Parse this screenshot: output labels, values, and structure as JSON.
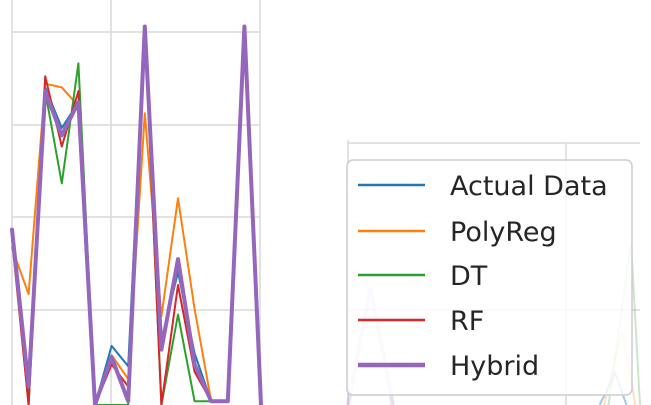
{
  "chart_data": {
    "type": "line",
    "grid": true,
    "legend_position": "lower-right",
    "x": [
      0,
      1,
      2,
      3,
      4,
      5,
      6,
      7,
      8,
      9,
      10,
      11,
      12,
      13,
      14,
      15
    ],
    "series": [
      {
        "name": "Actual Data",
        "color": "#1f77b4",
        "width": 2,
        "values": [
          0.95,
          0.05,
          1.72,
          1.5,
          1.64,
          0.0,
          0.32,
          0.21,
          2.05,
          0.35,
          0.72,
          0.28,
          0.02,
          0.02,
          2.05,
          0.0
        ]
      },
      {
        "name": "PolyReg",
        "color": "#ff7f0e",
        "width": 2,
        "values": [
          0.85,
          0.6,
          1.74,
          1.72,
          1.62,
          0.0,
          0.27,
          0.14,
          1.58,
          0.48,
          1.12,
          0.52,
          0.02,
          0.02,
          2.05,
          0.0
        ]
      },
      {
        "name": "DT",
        "color": "#2ca02c",
        "width": 2,
        "values": [
          0.95,
          0.0,
          1.7,
          1.2,
          1.85,
          0.0,
          0.0,
          0.0,
          2.05,
          0.0,
          0.49,
          0.02,
          0.02,
          0.02,
          2.05,
          0.0
        ]
      },
      {
        "name": "RF",
        "color": "#d62728",
        "width": 2,
        "values": [
          0.9,
          0.0,
          1.78,
          1.4,
          1.7,
          0.0,
          0.22,
          0.1,
          2.05,
          0.0,
          0.65,
          0.18,
          0.02,
          0.02,
          2.05,
          0.0
        ]
      },
      {
        "name": "Hybrid",
        "color": "#9467bd",
        "width": 4,
        "values": [
          0.95,
          0.1,
          1.7,
          1.46,
          1.64,
          0.0,
          0.26,
          0.02,
          2.05,
          0.3,
          0.79,
          0.22,
          0.02,
          0.02,
          2.05,
          0.0
        ]
      }
    ],
    "xlim": [
      0,
      15
    ],
    "ylim": [
      0,
      2.15
    ],
    "inset_faint_spikes": {
      "x": [
        1,
        2,
        3,
        4,
        5,
        6,
        7,
        8,
        9,
        10,
        11,
        12,
        13,
        14
      ],
      "values": [
        0.0,
        0.55,
        0.0,
        0.0,
        0.0,
        0.0,
        0.0,
        0.0,
        0.0,
        0.0,
        0.0,
        0.0,
        0.0,
        0.3
      ],
      "colors": [
        "#9467bd",
        "#2ca02c",
        "#1f77b4",
        "#ff7f0e"
      ]
    }
  }
}
